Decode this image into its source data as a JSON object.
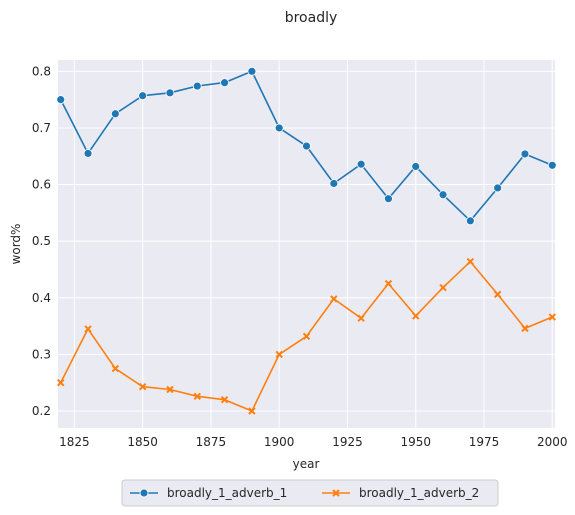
{
  "chart_data": {
    "type": "line",
    "title": "broadly",
    "xlabel": "year",
    "ylabel": "word%",
    "xlim": [
      1819,
      2001
    ],
    "ylim": [
      0.17,
      0.82
    ],
    "xticks": [
      1825,
      1850,
      1875,
      1900,
      1925,
      1950,
      1975,
      2000
    ],
    "yticks": [
      0.2,
      0.3,
      0.4,
      0.5,
      0.6,
      0.7,
      0.8
    ],
    "x": [
      1820,
      1830,
      1840,
      1850,
      1860,
      1870,
      1880,
      1890,
      1900,
      1910,
      1920,
      1930,
      1940,
      1950,
      1960,
      1970,
      1980,
      1990,
      2000
    ],
    "series": [
      {
        "name": "broadly_1_adverb_1",
        "color": "#1f77b4",
        "marker": "circle",
        "values": [
          0.75,
          0.655,
          0.725,
          0.757,
          0.762,
          0.774,
          0.78,
          0.8,
          0.7,
          0.668,
          0.602,
          0.636,
          0.575,
          0.632,
          0.582,
          0.536,
          0.594,
          0.654,
          0.634
        ]
      },
      {
        "name": "broadly_1_adverb_2",
        "color": "#ff7f0e",
        "marker": "x",
        "values": [
          0.25,
          0.345,
          0.275,
          0.243,
          0.238,
          0.226,
          0.22,
          0.2,
          0.3,
          0.332,
          0.398,
          0.364,
          0.425,
          0.368,
          0.418,
          0.464,
          0.406,
          0.346,
          0.366
        ]
      }
    ],
    "grid": true,
    "background": "#eaeaf2",
    "legend_position": "bottom-center"
  }
}
